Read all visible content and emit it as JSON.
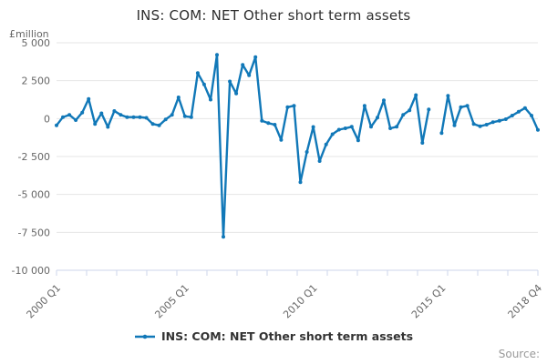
{
  "title": "INS: COM: NET Other short term assets",
  "y_unit_label": "£million",
  "source_label": "Source:",
  "legend": {
    "label": "INS: COM: NET Other short term assets"
  },
  "colors": {
    "series": "#1178b8",
    "grid": "#e6e6e6",
    "axis": "#ccd6eb",
    "tick_label": "#666666",
    "title": "#2f2f2f",
    "legend_text": "#333333",
    "source": "#999999"
  },
  "chart_data": {
    "type": "line",
    "title": "INS: COM: NET Other short term assets",
    "ylabel": "£million",
    "ylim": [
      -10000,
      5000
    ],
    "grid": true,
    "legend_position": "bottom",
    "x_tick_count": 17,
    "y_ticks": [
      {
        "value": 5000,
        "label": "5 000"
      },
      {
        "value": 2500,
        "label": "2 500"
      },
      {
        "value": 0,
        "label": "0"
      },
      {
        "value": -2500,
        "label": "-2 500"
      },
      {
        "value": -5000,
        "label": "-5 000"
      },
      {
        "value": -7500,
        "label": "-7 500"
      },
      {
        "value": -10000,
        "label": "-10 000"
      }
    ],
    "x_axis_labels": [
      {
        "label": "2000 Q1",
        "index": 0
      },
      {
        "label": "2005 Q1",
        "index": 20
      },
      {
        "label": "2010 Q1",
        "index": 40
      },
      {
        "label": "2015 Q1",
        "index": 60
      },
      {
        "label": "2018 Q4",
        "index": 75
      }
    ],
    "x": [
      "2000 Q1",
      "2000 Q2",
      "2000 Q3",
      "2000 Q4",
      "2001 Q1",
      "2001 Q2",
      "2001 Q3",
      "2001 Q4",
      "2002 Q1",
      "2002 Q2",
      "2002 Q3",
      "2002 Q4",
      "2003 Q1",
      "2003 Q2",
      "2003 Q3",
      "2003 Q4",
      "2004 Q1",
      "2004 Q2",
      "2004 Q3",
      "2004 Q4",
      "2005 Q1",
      "2005 Q2",
      "2005 Q3",
      "2005 Q4",
      "2006 Q1",
      "2006 Q2",
      "2006 Q3",
      "2006 Q4",
      "2007 Q1",
      "2007 Q2",
      "2007 Q3",
      "2007 Q4",
      "2008 Q1",
      "2008 Q2",
      "2008 Q3",
      "2008 Q4",
      "2009 Q1",
      "2009 Q2",
      "2009 Q3",
      "2009 Q4",
      "2010 Q1",
      "2010 Q2",
      "2010 Q3",
      "2010 Q4",
      "2011 Q1",
      "2011 Q2",
      "2011 Q3",
      "2011 Q4",
      "2012 Q1",
      "2012 Q2",
      "2012 Q3",
      "2012 Q4",
      "2013 Q1",
      "2013 Q2",
      "2013 Q3",
      "2013 Q4",
      "2014 Q1",
      "2014 Q2",
      "2014 Q3",
      "2014 Q4",
      "2015 Q1",
      "2015 Q2",
      "2015 Q3",
      "2015 Q4",
      "2016 Q1",
      "2016 Q2",
      "2016 Q3",
      "2016 Q4",
      "2017 Q1",
      "2017 Q2",
      "2017 Q3",
      "2017 Q4",
      "2018 Q1",
      "2018 Q2",
      "2018 Q3",
      "2018 Q4"
    ],
    "series": [
      {
        "name": "INS: COM: NET Other short term assets",
        "values": [
          -450,
          100,
          250,
          -100,
          400,
          1300,
          -350,
          350,
          -550,
          500,
          250,
          100,
          100,
          100,
          50,
          -350,
          -450,
          -50,
          250,
          1400,
          150,
          100,
          3000,
          2250,
          1250,
          4200,
          -7800,
          2450,
          1650,
          3550,
          2850,
          4050,
          -150,
          -300,
          -400,
          -1400,
          750,
          850,
          -4200,
          -2200,
          -550,
          -2800,
          -1700,
          -1030,
          -730,
          -640,
          -540,
          -1430,
          850,
          -540,
          60,
          1200,
          -640,
          -540,
          250,
          550,
          1550,
          -1600,
          600,
          null,
          -950,
          1500,
          -450,
          750,
          850,
          -350,
          -500,
          -400,
          -240,
          -140,
          -40,
          200,
          450,
          700,
          200,
          -750
        ]
      }
    ]
  }
}
